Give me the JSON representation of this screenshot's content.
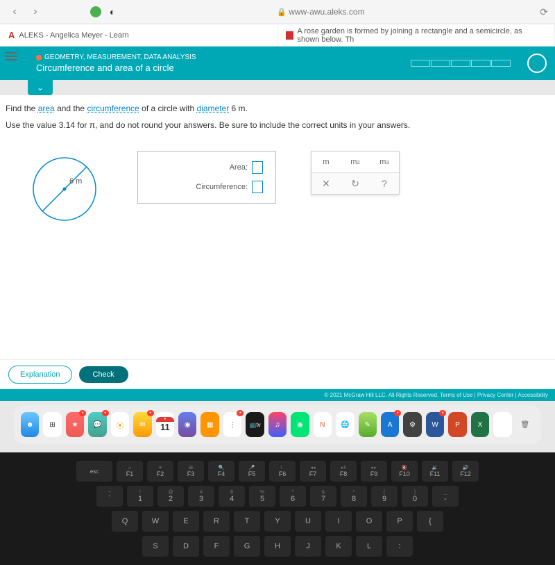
{
  "browser": {
    "url": "www-awu.aleks.com",
    "tab1": "ALEKS - Angelica Meyer - Learn",
    "tab2": "A rose garden is formed by joining a rectangle and a semicircle, as shown below. Th"
  },
  "header": {
    "breadcrumb": "GEOMETRY, MEASUREMENT, DATA ANALYSIS",
    "title": "Circumference and area of a circle"
  },
  "question": {
    "p1a": "Find the ",
    "link1": "area",
    "p1b": " and the ",
    "link2": "circumference",
    "p1c": " of a circle with ",
    "link3": "diameter",
    "p1d": " 6 m.",
    "instruction": "Use the value 3.14 for π, and do not round your answers. Be sure to include the correct units in your answers."
  },
  "diagram": {
    "diameter_label": "6 m",
    "circle_stroke": "#0288d1",
    "center_fill": "#0288d1"
  },
  "answers": {
    "area_label": "Area:",
    "circ_label": "Circumference:"
  },
  "units": {
    "u1": "m",
    "u2": "m²",
    "u3": "m³",
    "a1": "✕",
    "a2": "↻",
    "a3": "?"
  },
  "buttons": {
    "explanation": "Explanation",
    "check": "Check"
  },
  "copyright": "© 2021 McGraw Hill LLC. All Rights Reserved.   Terms of Use  |  Privacy Center  |  Accessibility",
  "dock": {
    "cal_badge": "11"
  },
  "keyboard": {
    "fn": [
      "esc",
      "F1",
      "F2",
      "F3",
      "F4",
      "F5",
      "F6",
      "F7",
      "F8",
      "F9",
      "F10",
      "F11",
      "F12"
    ],
    "fn_sub": [
      "",
      "☼",
      "☀",
      "⊞",
      "🔍",
      "🎤",
      "☾",
      "◂◂",
      "▸‖",
      "▸▸",
      "🔇",
      "🔉",
      "🔊"
    ],
    "num": [
      "~\n`",
      "!\n1",
      "@\n2",
      "#\n3",
      "$\n4",
      "%\n5",
      "^\n6",
      "&\n7",
      "*\n8",
      "(\n9",
      ")\n0",
      "_\n-"
    ],
    "top": [
      "Q",
      "W",
      "E",
      "R",
      "T",
      "Y",
      "U",
      "I",
      "O",
      "P",
      "{"
    ],
    "mid": [
      "S",
      "D",
      "F",
      "G",
      "H",
      "J",
      "K",
      "L",
      ":"
    ]
  }
}
